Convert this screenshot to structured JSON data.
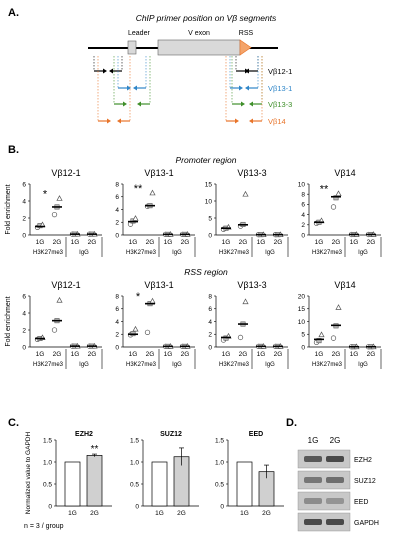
{
  "panels": {
    "a": {
      "letter": "A.",
      "title": "ChIP primer position on Vβ segments",
      "leader_label": "Leader",
      "vexon_label": "V exon",
      "rss_label": "RSS",
      "primers": [
        {
          "label": "Vβ12-1",
          "color": "#000000"
        },
        {
          "label": "Vβ13-1",
          "color": "#2f86c8"
        },
        {
          "label": "Vβ13-3",
          "color": "#3f8f2a"
        },
        {
          "label": "Vβ14",
          "color": "#e8742a"
        }
      ]
    },
    "b": {
      "letter": "B.",
      "promoter_title": "Promoter region",
      "rss_title": "RSS region"
    },
    "c": {
      "letter": "C.",
      "footnote": "n = 3 / group"
    },
    "d": {
      "letter": "D.",
      "lanes": [
        "1G",
        "2G"
      ],
      "bands": [
        "EZH2",
        "SUZ12",
        "EED",
        "GAPDH"
      ]
    }
  },
  "chart_data": [
    {
      "type": "scatter",
      "region": "Promoter region",
      "title": "Vβ12-1",
      "ylabel": "Fold enrichment",
      "ylim": [
        0,
        6
      ],
      "yticks": [
        "0",
        "2",
        "4",
        "6"
      ],
      "x": [
        "1G",
        "2G",
        "1G",
        "2G"
      ],
      "groups": [
        "H3K27me3",
        "IgG"
      ],
      "sig": "*",
      "means": [
        1.0,
        3.3,
        0.1,
        0.1
      ],
      "points": [
        [
          0.9,
          1.1,
          1.2
        ],
        [
          2.4,
          3.3,
          4.3
        ],
        [
          0.1,
          0.1,
          0.1
        ],
        [
          0.1,
          0.1,
          0.1
        ]
      ]
    },
    {
      "type": "scatter",
      "region": "Promoter region",
      "title": "Vβ13-1",
      "ylabel": "",
      "ylim": [
        0,
        8
      ],
      "yticks": [
        "0",
        "2",
        "4",
        "6",
        "8"
      ],
      "x": [
        "1G",
        "2G",
        "1G",
        "2G"
      ],
      "groups": [
        "H3K27me3",
        "IgG"
      ],
      "sig": "**",
      "means": [
        2.1,
        4.6,
        0.1,
        0.1
      ],
      "points": [
        [
          1.7,
          2.2,
          2.6
        ],
        [
          4.5,
          4.6,
          6.6
        ],
        [
          0.1,
          0.1,
          0.1
        ],
        [
          0.1,
          0.1,
          0.1
        ]
      ]
    },
    {
      "type": "scatter",
      "region": "Promoter region",
      "title": "Vβ13-3",
      "ylabel": "",
      "ylim": [
        0,
        15
      ],
      "yticks": [
        "0",
        "5",
        "10",
        "15"
      ],
      "x": [
        "1G",
        "2G",
        "1G",
        "2G"
      ],
      "groups": [
        "H3K27me3",
        "IgG"
      ],
      "sig": "",
      "means": [
        2.0,
        3.0,
        0.1,
        0.1
      ],
      "points": [
        [
          1.7,
          2.0,
          2.3
        ],
        [
          2.6,
          3.1,
          12.0
        ],
        [
          0.1,
          0.1,
          0.1
        ],
        [
          0.1,
          0.1,
          0.1
        ]
      ]
    },
    {
      "type": "scatter",
      "region": "Promoter region",
      "title": "Vβ14",
      "ylabel": "",
      "ylim": [
        0,
        10
      ],
      "yticks": [
        "0",
        "2",
        "4",
        "6",
        "8",
        "10"
      ],
      "x": [
        "1G",
        "2G",
        "1G",
        "2G"
      ],
      "groups": [
        "H3K27me3",
        "IgG"
      ],
      "sig": "**",
      "means": [
        2.5,
        7.5,
        0.1,
        0.1
      ],
      "points": [
        [
          2.3,
          2.5,
          2.8
        ],
        [
          5.5,
          7.3,
          8.1
        ],
        [
          0.1,
          0.1,
          0.1
        ],
        [
          0.1,
          0.1,
          0.1
        ]
      ]
    },
    {
      "type": "scatter",
      "region": "RSS region",
      "title": "Vβ12-1",
      "ylabel": "Fold enrichment",
      "ylim": [
        0,
        6
      ],
      "yticks": [
        "0",
        "2",
        "4",
        "6"
      ],
      "x": [
        "1G",
        "2G",
        "1G",
        "2G"
      ],
      "groups": [
        "H3K27me3",
        "IgG"
      ],
      "sig": "",
      "means": [
        1.0,
        3.1,
        0.1,
        0.1
      ],
      "points": [
        [
          0.9,
          1.0,
          1.1
        ],
        [
          2.0,
          3.1,
          5.5
        ],
        [
          0.1,
          0.1,
          0.1
        ],
        [
          0.1,
          0.1,
          0.1
        ]
      ]
    },
    {
      "type": "scatter",
      "region": "RSS region",
      "title": "Vβ13-1",
      "ylabel": "",
      "ylim": [
        0,
        8
      ],
      "yticks": [
        "0",
        "2",
        "4",
        "6",
        "8"
      ],
      "x": [
        "1G",
        "2G",
        "1G",
        "2G"
      ],
      "groups": [
        "H3K27me3",
        "IgG"
      ],
      "sig": "*",
      "means": [
        2.0,
        6.8,
        0.1,
        0.1
      ],
      "points": [
        [
          1.9,
          2.1,
          2.8
        ],
        [
          2.3,
          6.8,
          7.2
        ],
        [
          0.1,
          0.1,
          0.1
        ],
        [
          0.1,
          0.1,
          0.1
        ]
      ]
    },
    {
      "type": "scatter",
      "region": "RSS region",
      "title": "Vβ13-3",
      "ylabel": "",
      "ylim": [
        0,
        8
      ],
      "yticks": [
        "0",
        "2",
        "4",
        "6",
        "8"
      ],
      "x": [
        "1G",
        "2G",
        "1G",
        "2G"
      ],
      "groups": [
        "H3K27me3",
        "IgG"
      ],
      "sig": "",
      "means": [
        1.5,
        3.6,
        0.1,
        0.1
      ],
      "points": [
        [
          1.1,
          1.4,
          1.7
        ],
        [
          1.5,
          3.6,
          7.1
        ],
        [
          0.1,
          0.1,
          0.1
        ],
        [
          0.1,
          0.1,
          0.1
        ]
      ]
    },
    {
      "type": "scatter",
      "region": "RSS region",
      "title": "Vβ14",
      "ylabel": "",
      "ylim": [
        0,
        20
      ],
      "yticks": [
        "0",
        "5",
        "10",
        "15",
        "20"
      ],
      "x": [
        "1G",
        "2G",
        "1G",
        "2G"
      ],
      "groups": [
        "H3K27me3",
        "IgG"
      ],
      "sig": "",
      "means": [
        3.0,
        8.5,
        0.1,
        0.1
      ],
      "points": [
        [
          1.8,
          2.5,
          4.8
        ],
        [
          3.5,
          8.3,
          15.5
        ],
        [
          0.1,
          0.1,
          0.1
        ],
        [
          0.1,
          0.1,
          0.1
        ]
      ]
    },
    {
      "type": "bar",
      "title": "EZH2",
      "ylabel": "Normalized value to GAPDH",
      "ylim": [
        0,
        1.5
      ],
      "yticks": [
        "0",
        "0.5",
        "1.0",
        "1.5"
      ],
      "categories": [
        "1G",
        "2G"
      ],
      "values": [
        1.0,
        1.15
      ],
      "errors": [
        0,
        0.03
      ],
      "sig": "**"
    },
    {
      "type": "bar",
      "title": "SUZ12",
      "ylabel": "",
      "ylim": [
        0,
        1.5
      ],
      "yticks": [
        "0",
        "0.5",
        "1.0",
        "1.5"
      ],
      "categories": [
        "1G",
        "2G"
      ],
      "values": [
        1.0,
        1.12
      ],
      "errors": [
        0,
        0.2
      ],
      "sig": ""
    },
    {
      "type": "bar",
      "title": "EED",
      "ylabel": "",
      "ylim": [
        0,
        1.5
      ],
      "yticks": [
        "0",
        "0.5",
        "1.0",
        "1.5"
      ],
      "categories": [
        "1G",
        "2G"
      ],
      "values": [
        1.0,
        0.78
      ],
      "errors": [
        0,
        0.15
      ],
      "sig": ""
    }
  ]
}
